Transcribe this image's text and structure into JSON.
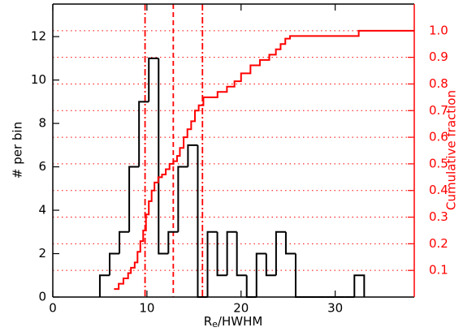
{
  "chart_data": {
    "type": "histogram",
    "xlabel": {
      "main": "R",
      "sub": "e",
      "rest": "/HWHM"
    },
    "ylabel": "# per bin",
    "y2label": "Cumulative fraction",
    "bins": [
      5.0,
      6.04,
      7.08,
      8.12,
      9.16,
      10.2,
      11.24,
      12.28,
      13.32,
      14.36,
      15.4,
      16.44,
      17.48,
      18.52,
      19.56,
      20.6,
      21.64,
      22.68,
      23.72,
      24.76,
      25.8,
      26.84,
      27.88,
      28.92,
      29.96,
      31.0,
      32.04,
      33.08
    ],
    "counts": [
      1,
      2,
      3,
      6,
      9,
      11,
      2,
      3,
      6,
      7,
      0,
      3,
      1,
      3,
      1,
      0,
      2,
      1,
      3,
      2,
      0,
      0,
      0,
      0,
      0,
      0,
      1
    ],
    "color": "#000000",
    "cumulative": {
      "color": "#ff0000",
      "axis": "y2",
      "x": [
        6.5,
        7.0,
        7.5,
        8.0,
        8.3,
        8.7,
        9.0,
        9.3,
        9.6,
        9.9,
        10.2,
        10.5,
        10.8,
        11.2,
        11.6,
        12.0,
        12.4,
        12.8,
        13.2,
        13.5,
        13.9,
        14.3,
        14.7,
        15.1,
        15.5,
        16.0,
        17.5,
        18.5,
        19.3,
        20.0,
        21.0,
        22.0,
        23.0,
        23.7,
        24.2,
        24.7,
        25.2,
        32.5
      ],
      "values": [
        0.03,
        0.05,
        0.07,
        0.09,
        0.11,
        0.13,
        0.17,
        0.21,
        0.25,
        0.31,
        0.36,
        0.4,
        0.43,
        0.45,
        0.46,
        0.48,
        0.5,
        0.51,
        0.53,
        0.56,
        0.6,
        0.63,
        0.66,
        0.7,
        0.72,
        0.75,
        0.77,
        0.79,
        0.81,
        0.84,
        0.87,
        0.89,
        0.91,
        0.93,
        0.95,
        0.97,
        0.98,
        1.0
      ]
    },
    "vlines": [
      {
        "x": 9.8,
        "style": "dashdot"
      },
      {
        "x": 12.8,
        "style": "dashed"
      },
      {
        "x": 15.9,
        "style": "dashdot"
      }
    ],
    "vline_color": "#ff0000",
    "xlim": [
      0,
      38.4
    ],
    "xticks": [
      0,
      10,
      20,
      30
    ],
    "ylim": [
      0,
      13.5
    ],
    "yticks": [
      0,
      2,
      4,
      6,
      8,
      10,
      12
    ],
    "y2lim": [
      0,
      1.1
    ],
    "y2ticks": [
      0.1,
      0.2,
      0.3,
      0.4,
      0.5,
      0.6,
      0.7,
      0.8,
      0.9,
      {
        "value": 1.0,
        "label": "1.0"
      }
    ],
    "y2grid": true,
    "y2color": "#ff0000"
  }
}
